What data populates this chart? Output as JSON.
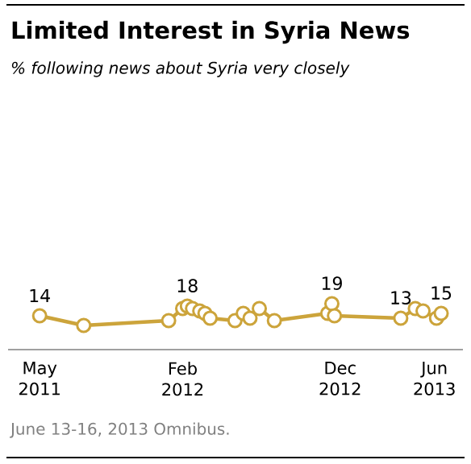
{
  "chart_data": {
    "type": "line",
    "title": "Limited Interest in Syria News",
    "subtitle": "% following news about Syria very closely",
    "x": [
      "2011-05-01",
      "2011-07-25",
      "2012-01-05",
      "2012-02-01",
      "2012-02-10",
      "2012-02-20",
      "2012-03-05",
      "2012-03-15",
      "2012-03-25",
      "2012-05-12",
      "2012-05-28",
      "2012-06-10",
      "2012-06-28",
      "2012-07-27",
      "2012-11-07",
      "2012-11-15",
      "2012-11-20",
      "2013-03-28",
      "2013-04-25",
      "2013-05-10",
      "2013-06-05",
      "2013-06-14"
    ],
    "series": [
      {
        "color": "#cca43b",
        "values": [
          14,
          10,
          12,
          17,
          18,
          17,
          16,
          15,
          13,
          12,
          15,
          13,
          17,
          12,
          15,
          19,
          14,
          13,
          17,
          16,
          13,
          15
        ],
        "value_labels": [
          "14",
          null,
          null,
          null,
          "18",
          null,
          null,
          null,
          null,
          null,
          null,
          null,
          null,
          null,
          null,
          "19",
          null,
          "13",
          null,
          null,
          null,
          "15"
        ]
      }
    ],
    "marker": "circle",
    "line_style": "solid",
    "xlim": [
      "2011-03-01",
      "2013-07-26"
    ],
    "tick_labels": "x",
    "xticks": [
      {
        "value": "2011-05-01",
        "label": "May 2011"
      },
      {
        "value": "2012-02-01",
        "label": "Feb 2012"
      },
      {
        "value": "2012-12-01",
        "label": "Dec 2012"
      },
      {
        "value": "2013-06-01",
        "label": "Jun 2013"
      }
    ],
    "annotations": [
      "June 13-16, 2013 Omnibus."
    ]
  }
}
